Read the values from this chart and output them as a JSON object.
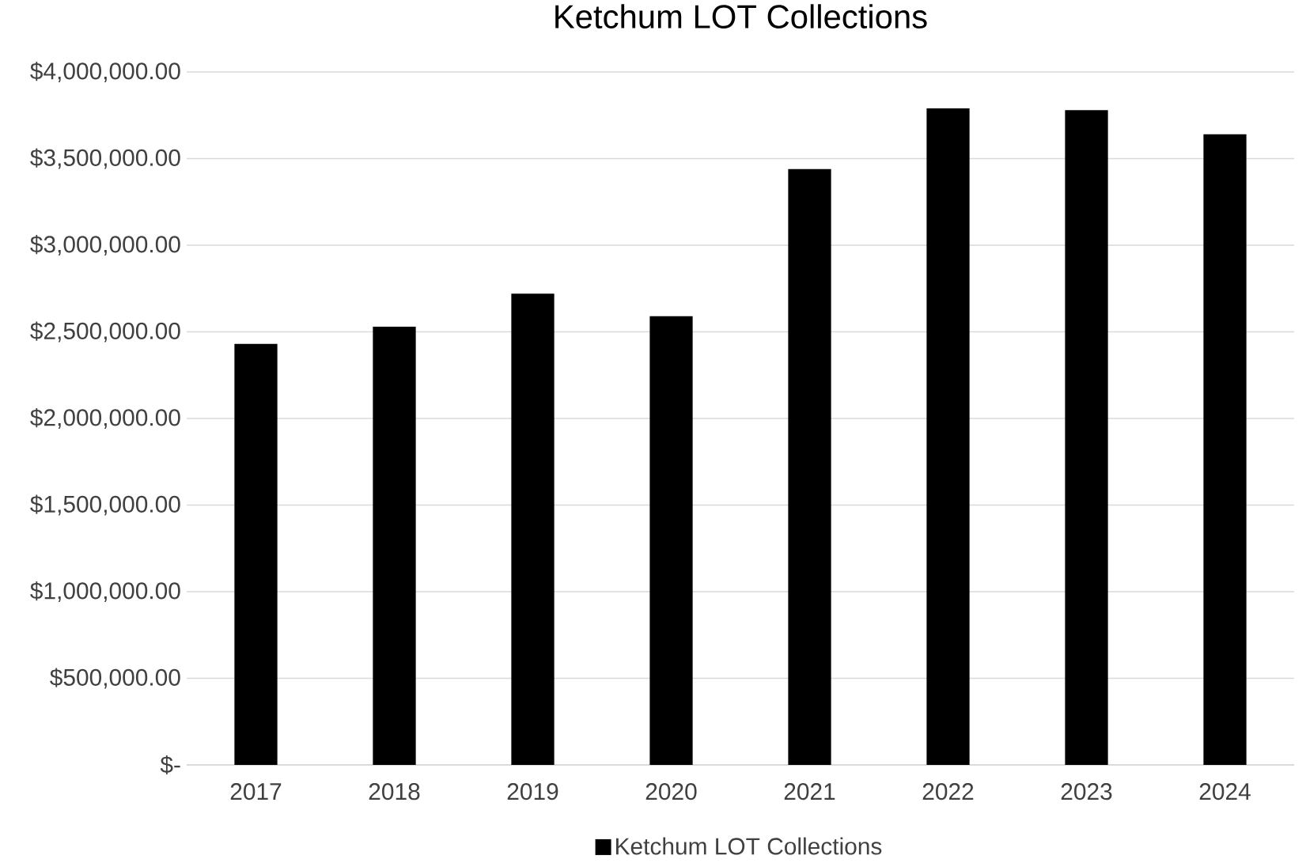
{
  "chart_data": {
    "type": "bar",
    "title": "Ketchum LOT Collections",
    "categories": [
      "2017",
      "2018",
      "2019",
      "2020",
      "2021",
      "2022",
      "2023",
      "2024"
    ],
    "series": [
      {
        "name": "Ketchum LOT Collections",
        "color": "#000000",
        "values": [
          2430000,
          2530000,
          2720000,
          2590000,
          3440000,
          3790000,
          3780000,
          3640000
        ]
      }
    ],
    "ylim": [
      0,
      4000000
    ],
    "yticks": [
      {
        "value": 0,
        "label": "$-"
      },
      {
        "value": 500000,
        "label": "$500,000.00"
      },
      {
        "value": 1000000,
        "label": "$1,000,000.00"
      },
      {
        "value": 1500000,
        "label": "$1,500,000.00"
      },
      {
        "value": 2000000,
        "label": "$2,000,000.00"
      },
      {
        "value": 2500000,
        "label": "$2,500,000.00"
      },
      {
        "value": 3000000,
        "label": "$3,000,000.00"
      },
      {
        "value": 3500000,
        "label": "$3,500,000.00"
      },
      {
        "value": 4000000,
        "label": "$4,000,000.00"
      }
    ],
    "grid": "y",
    "legend": "bottom"
  }
}
